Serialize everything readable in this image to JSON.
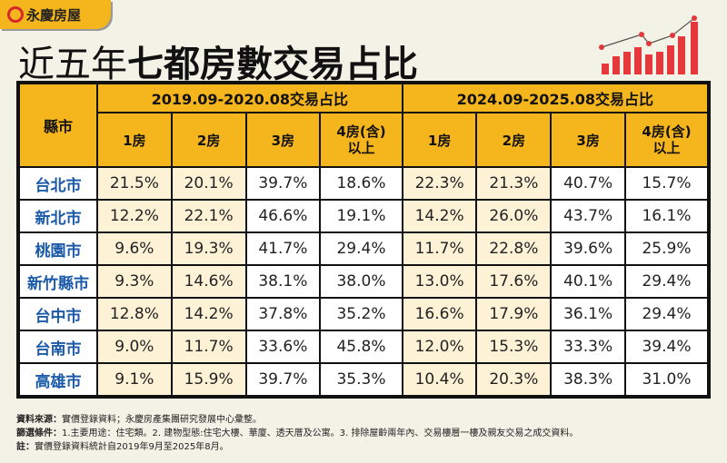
{
  "brand": "永慶房屋",
  "title_light": "近五年",
  "title_bold": "七都房數交易占比",
  "colors": {
    "header": "#f5b51c",
    "city": "#1a5aa8",
    "cream": "#fdf1d6",
    "accent": "#d8262c"
  },
  "chart_data": {
    "type": "table",
    "corner": "縣市",
    "groups": [
      "2019.09-2020.08交易占比",
      "2024.09-2025.08交易占比"
    ],
    "columns": [
      "1房",
      "2房",
      "3房",
      "4房(含)以上"
    ],
    "rows": [
      {
        "city": "台北市",
        "values": [
          "21.5%",
          "20.1%",
          "39.7%",
          "18.6%",
          "22.3%",
          "21.3%",
          "40.7%",
          "15.7%"
        ]
      },
      {
        "city": "新北市",
        "values": [
          "12.2%",
          "22.1%",
          "46.6%",
          "19.1%",
          "14.2%",
          "26.0%",
          "43.7%",
          "16.1%"
        ]
      },
      {
        "city": "桃園市",
        "values": [
          "9.6%",
          "19.3%",
          "41.7%",
          "29.4%",
          "11.7%",
          "22.8%",
          "39.6%",
          "25.9%"
        ]
      },
      {
        "city": "新竹縣市",
        "values": [
          "9.3%",
          "14.6%",
          "38.1%",
          "38.0%",
          "13.0%",
          "17.6%",
          "40.1%",
          "29.4%"
        ]
      },
      {
        "city": "台中市",
        "values": [
          "12.8%",
          "14.2%",
          "37.8%",
          "35.2%",
          "16.6%",
          "17.9%",
          "36.1%",
          "29.4%"
        ]
      },
      {
        "city": "台南市",
        "values": [
          "9.0%",
          "11.7%",
          "33.6%",
          "45.8%",
          "12.0%",
          "15.3%",
          "33.3%",
          "39.4%"
        ]
      },
      {
        "city": "高雄市",
        "values": [
          "9.1%",
          "15.9%",
          "39.7%",
          "35.3%",
          "10.4%",
          "20.3%",
          "38.3%",
          "31.0%"
        ]
      }
    ]
  },
  "notes": [
    {
      "label": "資料來源：",
      "text": "實價登錄資料；永慶房產集團研究發展中心彙整。"
    },
    {
      "label": "篩選條件：",
      "text": "1.主要用途：住宅類。2. 建物型態:住宅大樓、華廈、透天厝及公寓。3. 排除屋齡兩年內、交易樓層一樓及親友交易之成交資料。"
    },
    {
      "label": "註：",
      "text": "實價登錄資料統計自2019年9月至2025年8月。"
    }
  ]
}
